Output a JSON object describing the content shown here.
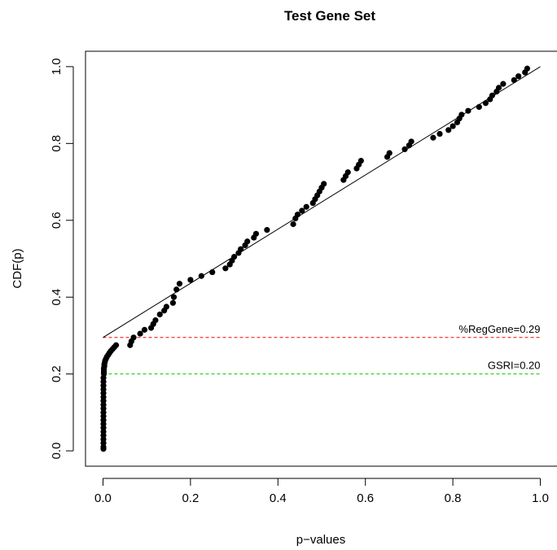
{
  "chart_data": {
    "type": "scatter",
    "title": "Test Gene Set",
    "xlabel": "p−values",
    "ylabel": "CDF(p)",
    "xlim": [
      -0.04,
      1.04
    ],
    "ylim": [
      -0.04,
      1.04
    ],
    "x_ticks": [
      0.0,
      0.2,
      0.4,
      0.6,
      0.8,
      1.0
    ],
    "x_tick_labels": [
      "0.0",
      "0.2",
      "0.4",
      "0.6",
      "0.8",
      "1.0"
    ],
    "y_ticks": [
      0.0,
      0.2,
      0.4,
      0.6,
      0.8,
      1.0
    ],
    "y_tick_labels": [
      "0.0",
      "0.2",
      "0.4",
      "0.6",
      "0.8",
      "1.0"
    ],
    "grid": false,
    "point_color": "#000000",
    "fit_line": {
      "x": [
        0.0,
        1.0
      ],
      "y": [
        0.295,
        1.0
      ],
      "color": "#000000"
    },
    "reference_lines": [
      {
        "y": 0.295,
        "label": "%RegGene=0.29",
        "color": "#ff0000",
        "style": "dashed"
      },
      {
        "y": 0.2,
        "label": "GSRI=0.20",
        "color": "#00cc00",
        "style": "dashed"
      }
    ],
    "points": {
      "x": [
        0.001,
        0.001,
        0.001,
        0.001,
        0.001,
        0.001,
        0.001,
        0.001,
        0.001,
        0.001,
        0.001,
        0.001,
        0.001,
        0.001,
        0.001,
        0.001,
        0.001,
        0.001,
        0.001,
        0.001,
        0.002,
        0.002,
        0.002,
        0.002,
        0.003,
        0.003,
        0.004,
        0.005,
        0.007,
        0.009,
        0.012,
        0.015,
        0.018,
        0.022,
        0.026,
        0.03,
        0.062,
        0.065,
        0.07,
        0.085,
        0.095,
        0.11,
        0.115,
        0.12,
        0.13,
        0.14,
        0.145,
        0.16,
        0.162,
        0.168,
        0.175,
        0.2,
        0.225,
        0.25,
        0.28,
        0.29,
        0.295,
        0.3,
        0.31,
        0.315,
        0.325,
        0.33,
        0.345,
        0.35,
        0.375,
        0.435,
        0.44,
        0.445,
        0.455,
        0.465,
        0.48,
        0.485,
        0.49,
        0.495,
        0.5,
        0.505,
        0.55,
        0.555,
        0.56,
        0.58,
        0.585,
        0.59,
        0.65,
        0.655,
        0.69,
        0.7,
        0.705,
        0.755,
        0.77,
        0.79,
        0.8,
        0.81,
        0.815,
        0.82,
        0.835,
        0.86,
        0.875,
        0.885,
        0.89,
        0.9,
        0.905,
        0.915,
        0.94,
        0.95,
        0.965,
        0.97
      ],
      "y": [
        0.005,
        0.01,
        0.02,
        0.03,
        0.04,
        0.05,
        0.06,
        0.07,
        0.08,
        0.09,
        0.1,
        0.11,
        0.12,
        0.13,
        0.14,
        0.15,
        0.16,
        0.17,
        0.18,
        0.19,
        0.2,
        0.205,
        0.21,
        0.215,
        0.22,
        0.225,
        0.23,
        0.235,
        0.24,
        0.245,
        0.25,
        0.255,
        0.26,
        0.265,
        0.27,
        0.275,
        0.275,
        0.285,
        0.295,
        0.305,
        0.315,
        0.32,
        0.33,
        0.34,
        0.355,
        0.365,
        0.375,
        0.385,
        0.4,
        0.42,
        0.435,
        0.445,
        0.455,
        0.465,
        0.475,
        0.485,
        0.495,
        0.505,
        0.515,
        0.525,
        0.535,
        0.545,
        0.555,
        0.565,
        0.575,
        0.59,
        0.605,
        0.615,
        0.625,
        0.635,
        0.645,
        0.655,
        0.665,
        0.675,
        0.685,
        0.695,
        0.705,
        0.715,
        0.725,
        0.735,
        0.745,
        0.755,
        0.765,
        0.775,
        0.785,
        0.795,
        0.805,
        0.815,
        0.825,
        0.835,
        0.845,
        0.855,
        0.865,
        0.875,
        0.885,
        0.895,
        0.905,
        0.915,
        0.925,
        0.935,
        0.945,
        0.955,
        0.965,
        0.975,
        0.985,
        0.995
      ]
    }
  }
}
